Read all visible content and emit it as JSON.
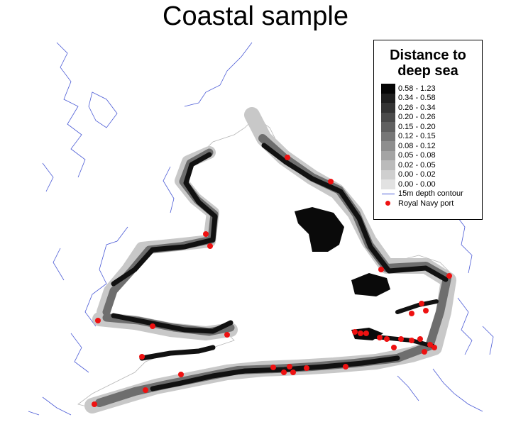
{
  "title": "Coastal sample",
  "legend": {
    "title_line1": "Distance to",
    "title_line2": "deep sea",
    "classes": [
      {
        "label": "0.58 - 1.23",
        "color": "#050505"
      },
      {
        "label": "0.34 - 0.58",
        "color": "#1e1e1e"
      },
      {
        "label": "0.26 - 0.34",
        "color": "#333333"
      },
      {
        "label": "0.20 - 0.26",
        "color": "#4a4a4a"
      },
      {
        "label": "0.15 - 0.20",
        "color": "#606060"
      },
      {
        "label": "0.12 - 0.15",
        "color": "#777777"
      },
      {
        "label": "0.08 - 0.12",
        "color": "#8e8e8e"
      },
      {
        "label": "0.05 - 0.08",
        "color": "#a4a4a4"
      },
      {
        "label": "0.02 - 0.05",
        "color": "#bbbbbb"
      },
      {
        "label": "0.00 - 0.02",
        "color": "#cfcfcf"
      },
      {
        "label": "0.00 - 0.00",
        "color": "#e2e2e2"
      }
    ],
    "contour_label": "15m depth contour",
    "port_label": "Royal Navy port"
  },
  "colors": {
    "contour": "#4b5bd6",
    "coast": "#b0b0b0",
    "port": "#ee1111"
  }
}
